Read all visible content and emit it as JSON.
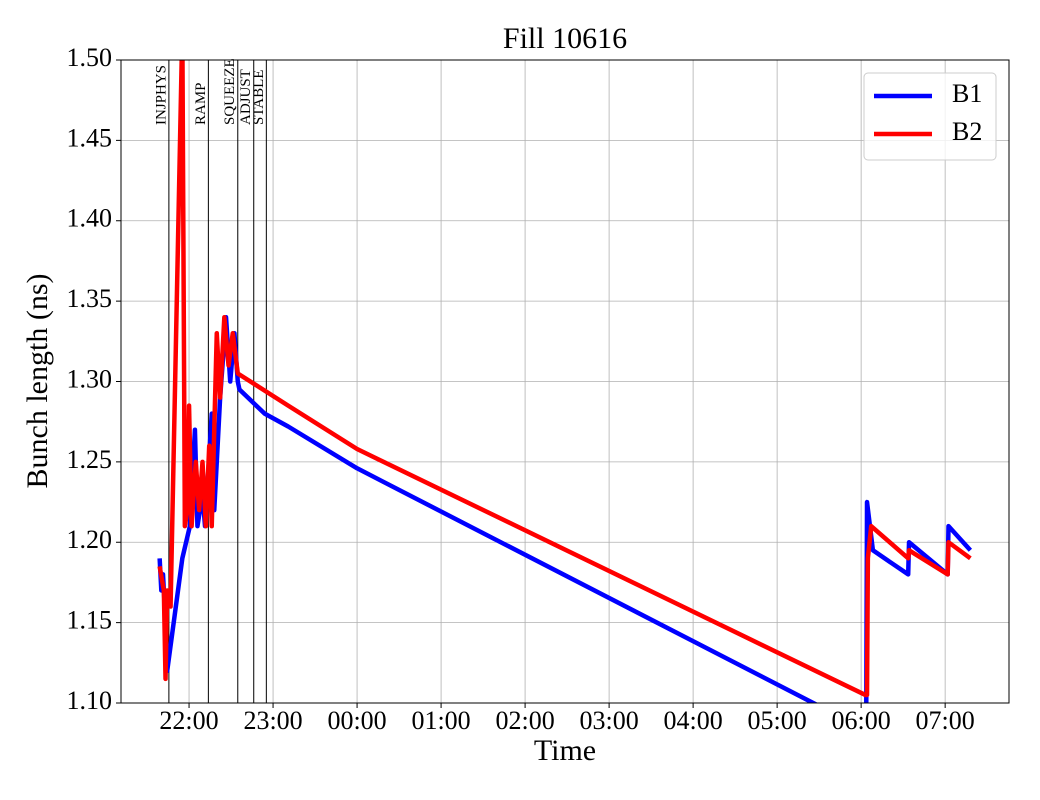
{
  "chart_data": {
    "type": "line",
    "title": "Fill 10616",
    "xlabel": "Time",
    "ylabel": "Bunch length (ns)",
    "xlim": [
      21.19,
      31.76
    ],
    "xticks": [
      {
        "value": 22,
        "label": "22:00"
      },
      {
        "value": 23,
        "label": "23:00"
      },
      {
        "value": 24,
        "label": "00:00"
      },
      {
        "value": 25,
        "label": "01:00"
      },
      {
        "value": 26,
        "label": "02:00"
      },
      {
        "value": 27,
        "label": "03:00"
      },
      {
        "value": 28,
        "label": "04:00"
      },
      {
        "value": 29,
        "label": "05:00"
      },
      {
        "value": 30,
        "label": "06:00"
      },
      {
        "value": 31,
        "label": "07:00"
      }
    ],
    "ylim": [
      1.1,
      1.5
    ],
    "yticks": [
      {
        "value": 1.1,
        "label": "1.10"
      },
      1.15,
      {
        "value": 1.2,
        "label": "1.20"
      },
      1.25,
      {
        "value": 1.3,
        "label": "1.30"
      },
      1.35,
      {
        "value": 1.4,
        "label": "1.40"
      },
      1.45,
      {
        "value": 1.5,
        "label": "1.50"
      }
    ],
    "grid": true,
    "legend": "upper right",
    "vlines": [
      {
        "x": 21.76,
        "label": "INJPHYS"
      },
      {
        "x": 22.23,
        "label": "RAMP"
      },
      {
        "x": 22.58,
        "label": "SQUEEZE"
      },
      {
        "x": 22.77,
        "label": "ADJUST"
      },
      {
        "x": 22.92,
        "label": "STABLE"
      }
    ],
    "series": [
      {
        "name": "B1",
        "color": "#0000ff",
        "x": [
          21.65,
          21.67,
          21.69,
          21.71,
          21.74,
          21.92,
          22.01,
          22.07,
          22.1,
          22.16,
          22.19,
          22.27,
          22.3,
          22.37,
          22.44,
          22.49,
          22.54,
          22.58,
          22.6,
          22.9,
          23.18,
          24.0,
          29.43,
          30.06,
          30.07,
          30.14,
          30.56,
          30.57,
          31.03,
          31.04,
          31.3
        ],
        "values": [
          1.19,
          1.17,
          1.18,
          1.16,
          1.12,
          1.19,
          1.21,
          1.27,
          1.21,
          1.23,
          1.21,
          1.28,
          1.22,
          1.29,
          1.34,
          1.3,
          1.33,
          1.3,
          1.295,
          1.28,
          1.272,
          1.246,
          1.1,
          1.083,
          1.225,
          1.195,
          1.18,
          1.2,
          1.18,
          1.21,
          1.195
        ]
      },
      {
        "name": "B2",
        "color": "#ff0000",
        "x": [
          21.65,
          21.7,
          21.72,
          21.74,
          21.78,
          21.92,
          21.95,
          21.98,
          22.0,
          22.03,
          22.08,
          22.12,
          22.16,
          22.2,
          22.24,
          22.27,
          22.3,
          22.33,
          22.37,
          22.42,
          22.47,
          22.52,
          22.58,
          23.18,
          24.0,
          30.05,
          30.07,
          30.08,
          30.12,
          30.56,
          30.57,
          31.03,
          31.04,
          31.3
        ],
        "values": [
          1.185,
          1.17,
          1.115,
          1.17,
          1.16,
          1.52,
          1.21,
          1.22,
          1.285,
          1.21,
          1.25,
          1.22,
          1.25,
          1.21,
          1.26,
          1.21,
          1.27,
          1.33,
          1.29,
          1.34,
          1.31,
          1.33,
          1.305,
          1.285,
          1.258,
          1.105,
          1.105,
          1.19,
          1.21,
          1.19,
          1.195,
          1.18,
          1.2,
          1.19
        ]
      }
    ]
  }
}
